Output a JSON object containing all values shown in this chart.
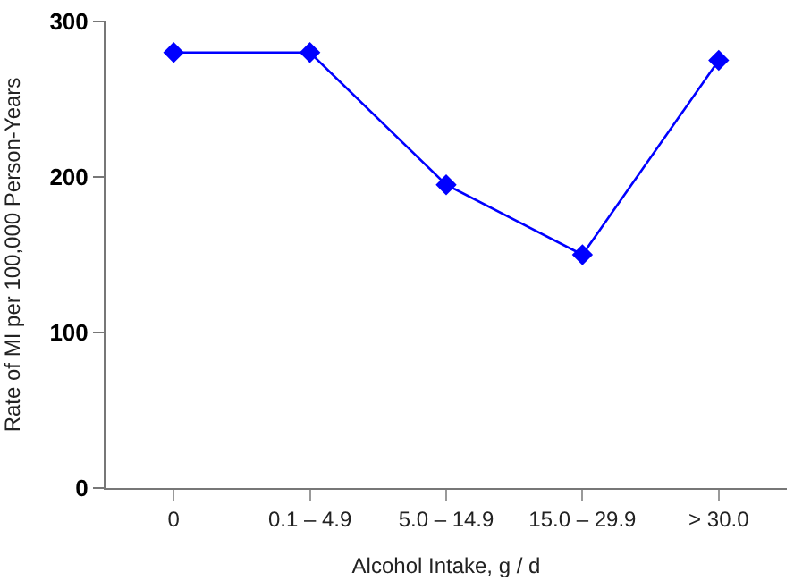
{
  "chart_data": {
    "type": "line",
    "xlabel": "Alcohol Intake, g / d",
    "ylabel": "Rate of MI per 100,000 Person-Years",
    "categories": [
      "0",
      "0.1 – 4.9",
      "5.0 – 14.9",
      "15.0 – 29.9",
      "> 30.0"
    ],
    "series": [
      {
        "color": "#0000ff",
        "values": [
          280,
          280,
          195,
          150,
          275
        ]
      }
    ],
    "ylim": [
      0,
      300
    ],
    "yticks": [
      0,
      100,
      200,
      300
    ],
    "marker": "diamond",
    "line_style": "solid"
  }
}
